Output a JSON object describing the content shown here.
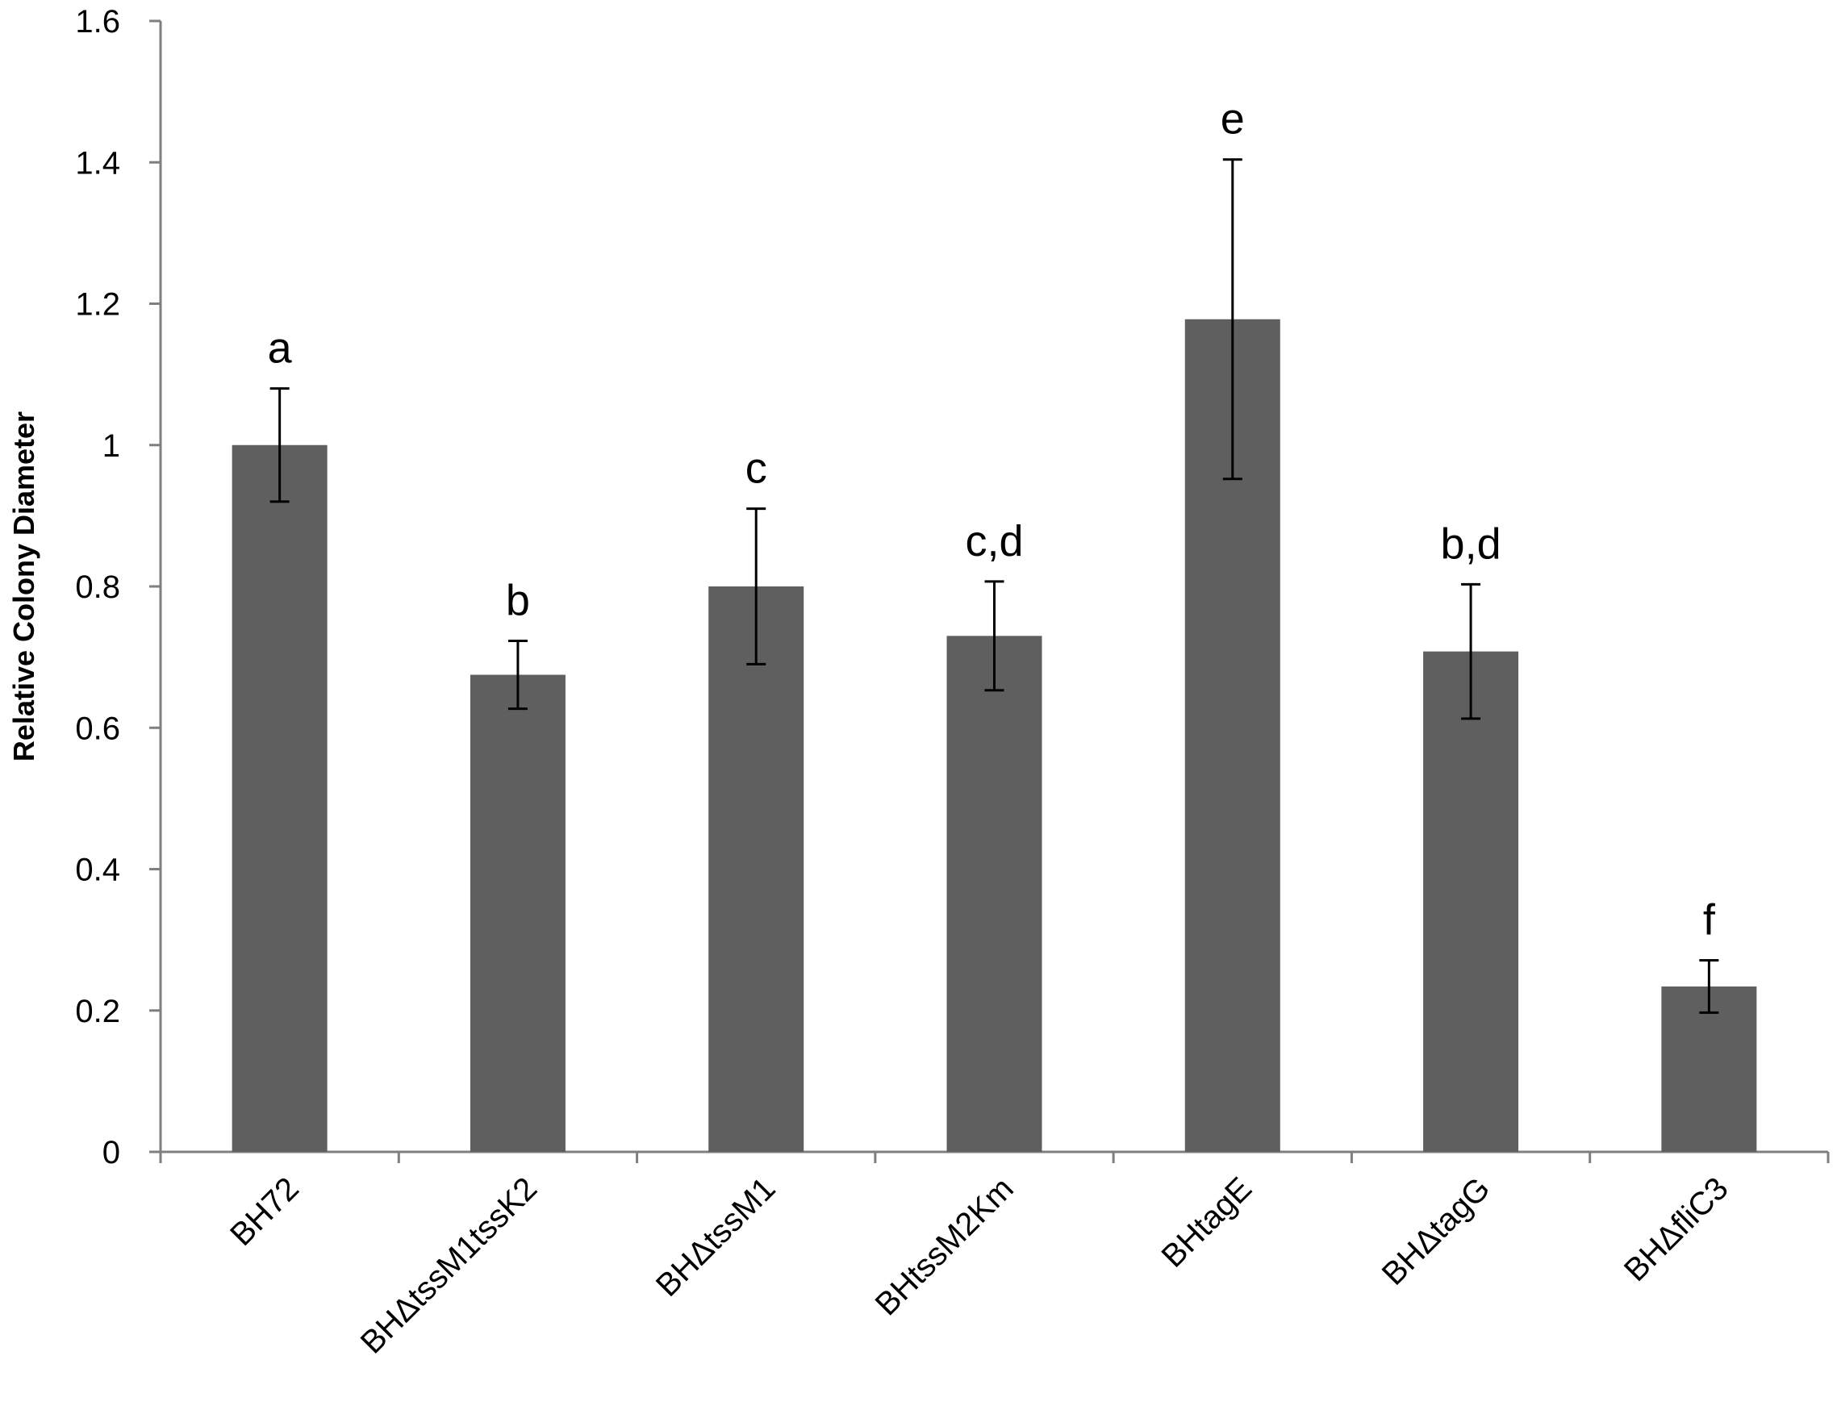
{
  "chart_data": {
    "type": "bar",
    "title": "",
    "xlabel": "",
    "ylabel": "Relative Colony Diameter",
    "ylim": [
      0,
      1.6
    ],
    "yticks": [
      "0",
      "0.2",
      "0.4",
      "0.6",
      "0.8",
      "1",
      "1.2",
      "1.4",
      "1.6"
    ],
    "grid": false,
    "legend": "none",
    "categories": [
      "BH72",
      "BHΔtssM1tssK2",
      "BHΔtssM1",
      "BHtssM2Km",
      "BHtagE",
      "BHΔtagG",
      "BHΔfliC3"
    ],
    "values": [
      1.0,
      0.675,
      0.8,
      0.73,
      1.178,
      0.708,
      0.234
    ],
    "errors": [
      0.08,
      0.048,
      0.11,
      0.077,
      0.226,
      0.095,
      0.037
    ],
    "annotations": [
      "a",
      "b",
      "c",
      "c,d",
      "e",
      "b,d",
      "f"
    ],
    "colors": {
      "bar": "#5f5f5f",
      "axis": "#7f7f7f",
      "error": "#000000"
    }
  }
}
